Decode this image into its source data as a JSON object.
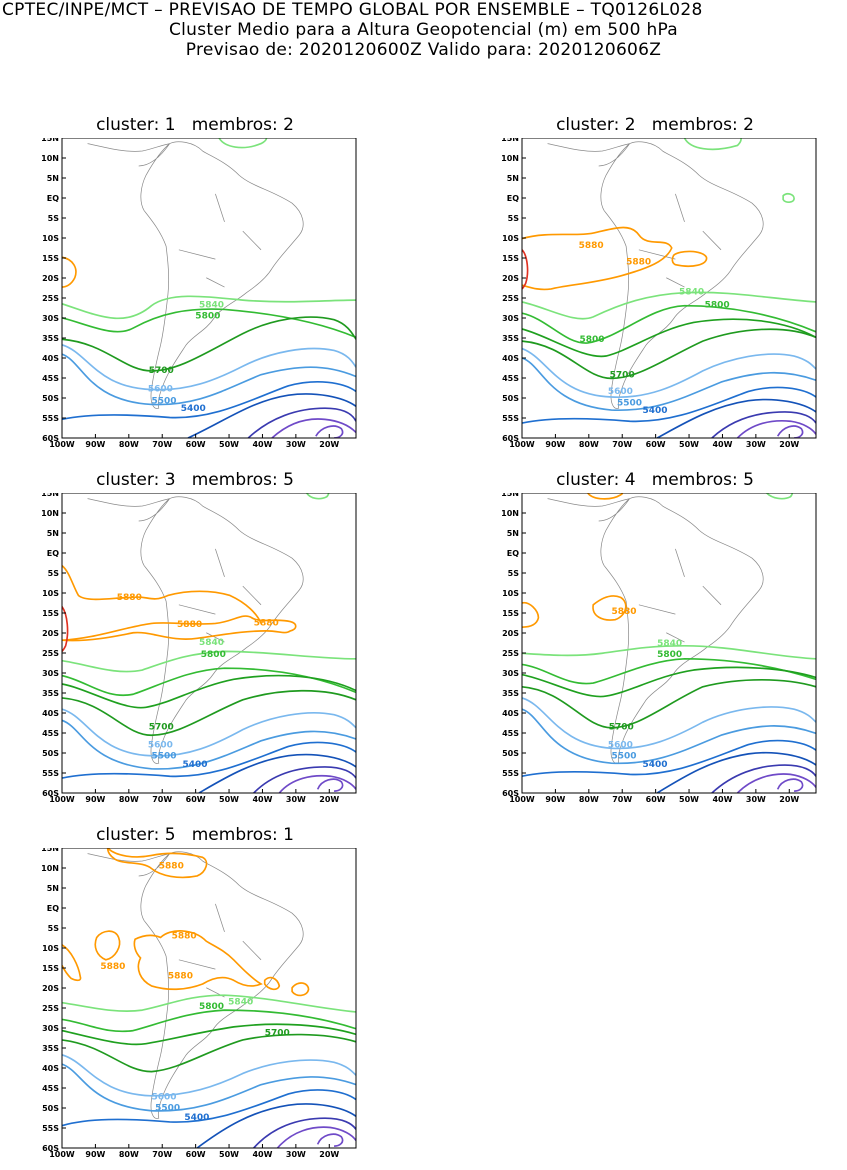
{
  "header": {
    "line1": "CPTEC/INPE/MCT – PREVISAO DE TEMPO GLOBAL POR ENSEMBLE – TQ0126L028",
    "line2": "Cluster Medio para a Altura Geopotencial (m) em 500 hPa",
    "line3": "Previsao de: 2020120600Z    Valido para: 2020120606Z"
  },
  "axes": {
    "lat_ticks": [
      "15N",
      "10N",
      "5N",
      "EQ",
      "5S",
      "10S",
      "15S",
      "20S",
      "25S",
      "30S",
      "35S",
      "40S",
      "45S",
      "50S",
      "55S",
      "60S"
    ],
    "lon_ticks": [
      "100W",
      "90W",
      "80W",
      "70W",
      "60W",
      "50W",
      "40W",
      "30W",
      "20W"
    ]
  },
  "colors": {
    "c5880": "#ff9900",
    "c5840": "#7be37b",
    "c5800": "#33bb33",
    "c5750": "#1fa01f",
    "c5700": "#1f9a1f",
    "c5600": "#7ab8ee",
    "c5500": "#4a9be0",
    "c5400": "#1f6fd0",
    "c5300": "#1452b8",
    "c5200": "#3a3ab0",
    "c5100": "#6f4ac8",
    "c5920": "#e03020",
    "coast": "#8a8a8a"
  },
  "panels": [
    {
      "title": "cluster: 1   membros: 2",
      "labels": {
        "5840": "5840",
        "5800": "5800",
        "5700": "5700",
        "5600": "5600",
        "5500": "5500",
        "5400": "5400"
      }
    },
    {
      "title": "cluster: 2   membros: 2",
      "labels": {
        "5880a": "5880",
        "5880b": "5880",
        "5840": "5840",
        "5800a": "5800",
        "5800b": "5800",
        "5700": "5700",
        "5600": "5600",
        "5500": "5500",
        "5400": "5400"
      }
    },
    {
      "title": "cluster: 3   membros: 5",
      "labels": {
        "5880a": "5880",
        "5880b": "5880",
        "5880c": "5880",
        "5840": "5840",
        "5800": "5800",
        "5700": "5700",
        "5600": "5600",
        "5500": "5500",
        "5400": "5400"
      }
    },
    {
      "title": "cluster: 4   membros: 5",
      "labels": {
        "5880a": "5880",
        "5840": "5840",
        "5800": "5800",
        "5700": "5700",
        "5600": "5600",
        "5500": "5500",
        "5400": "5400"
      }
    },
    {
      "title": "cluster: 5   membros: 1",
      "labels": {
        "5880a": "5880",
        "5880b": "5880",
        "5880c": "5880",
        "5880d": "5880",
        "5840": "5840",
        "5800": "5800",
        "5700": "5700",
        "5600": "5600",
        "5500": "5500",
        "5400": "5400"
      }
    }
  ]
}
